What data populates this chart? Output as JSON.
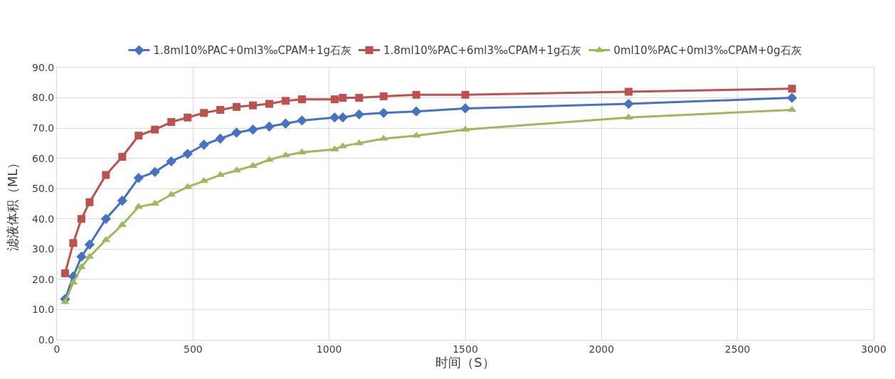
{
  "chart_data": {
    "type": "line",
    "xlabel": "时间（S）",
    "ylabel": "滤液体积（ML）",
    "x": [
      30,
      60,
      90,
      120,
      180,
      240,
      300,
      360,
      420,
      480,
      540,
      600,
      660,
      720,
      780,
      840,
      900,
      1020,
      1050,
      1110,
      1200,
      1320,
      1500,
      2100,
      2700
    ],
    "series": [
      {
        "name": "1.8ml10%PAC+0ml3‰CPAM+1g石灰",
        "color": "#4472c4",
        "marker": "diamond",
        "values": [
          13.5,
          21,
          27.5,
          31.5,
          40,
          46,
          53.5,
          55.5,
          59,
          61.5,
          64.5,
          66.5,
          68.5,
          69.5,
          70.5,
          71.5,
          72.5,
          73.5,
          73.5,
          74.5,
          75,
          75.5,
          76.5,
          78,
          80
        ]
      },
      {
        "name": "1.8ml10%PAC+6ml3‰CPAM+1g石灰",
        "color": "#c0504d",
        "marker": "square",
        "values": [
          22,
          32,
          40,
          45.5,
          54.5,
          60.5,
          67.5,
          69.5,
          72,
          73.5,
          75,
          76,
          77,
          77.5,
          78,
          79,
          79.5,
          79.5,
          80,
          80,
          80.5,
          81,
          81,
          82,
          83
        ]
      },
      {
        "name": "0ml10%PAC+0ml3‰CPAM+0g石灰",
        "color": "#9bbb59",
        "marker": "triangle",
        "values": [
          12.5,
          19,
          24,
          27.5,
          33,
          38,
          44,
          45,
          48,
          50.5,
          52.5,
          54.5,
          56,
          57.5,
          59.5,
          61,
          62,
          63,
          64,
          65,
          66.5,
          67.5,
          69.5,
          73.5,
          76
        ]
      }
    ],
    "xlim": [
      0,
      3000
    ],
    "xticks": [
      0,
      500,
      1000,
      1500,
      2000,
      2500,
      3000
    ],
    "ylim": [
      0,
      90
    ],
    "yticks": [
      {
        "value": 0,
        "label": "0.0"
      },
      {
        "value": 10,
        "label": "10.0"
      },
      {
        "value": 20,
        "label": "20.0"
      },
      {
        "value": 30,
        "label": "30.0"
      },
      {
        "value": 40,
        "label": "40.0"
      },
      {
        "value": 50,
        "label": "50.0"
      },
      {
        "value": 60,
        "label": "60.0"
      },
      {
        "value": 70,
        "label": "70.0"
      },
      {
        "value": 80,
        "label": "80.0"
      },
      {
        "value": 90,
        "label": "90.0"
      }
    ],
    "grid": true,
    "legend": "top",
    "line_style": "solid"
  }
}
